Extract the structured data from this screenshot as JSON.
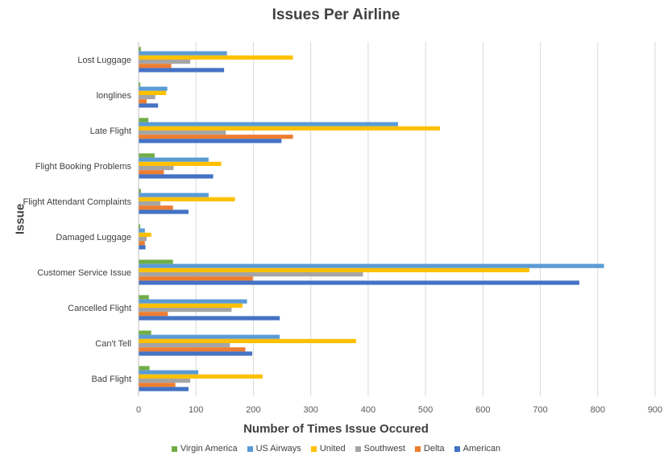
{
  "chart_data": {
    "type": "bar",
    "orientation": "horizontal",
    "title": "Issues Per Airline",
    "xlabel": "Number of Times Issue Occured",
    "ylabel": "Issue",
    "xlim": [
      0,
      900
    ],
    "xticks": [
      "0",
      "100",
      "200",
      "300",
      "400",
      "500",
      "600",
      "700",
      "800",
      "900"
    ],
    "grid": "vertical",
    "legend_position": "bottom",
    "categories": [
      "Lost Luggage",
      "longlines",
      "Late Flight",
      "Flight Booking Problems",
      "Flight Attendant Complaints",
      "Damaged Luggage",
      "Customer Service Issue",
      "Cancelled Flight",
      "Can't Tell",
      "Bad Flight"
    ],
    "series": [
      {
        "name": "Virgin America",
        "color": "#70ad47",
        "values": [
          4,
          3,
          17,
          28,
          4,
          3,
          60,
          18,
          22,
          19
        ]
      },
      {
        "name": "US Airways",
        "color": "#5b9bd5",
        "values": [
          154,
          50,
          452,
          122,
          122,
          11,
          811,
          189,
          246,
          104
        ]
      },
      {
        "name": "United",
        "color": "#ffc000",
        "values": [
          269,
          48,
          525,
          144,
          168,
          22,
          681,
          181,
          379,
          216
        ]
      },
      {
        "name": "Southwest",
        "color": "#a5a5a5",
        "values": [
          90,
          29,
          152,
          61,
          38,
          14,
          391,
          162,
          159,
          90
        ]
      },
      {
        "name": "Delta",
        "color": "#ed7d31",
        "values": [
          57,
          14,
          269,
          44,
          60,
          11,
          199,
          51,
          186,
          64
        ]
      },
      {
        "name": "American",
        "color": "#4472c4",
        "values": [
          149,
          34,
          249,
          130,
          87,
          12,
          768,
          246,
          198,
          87
        ]
      }
    ]
  }
}
